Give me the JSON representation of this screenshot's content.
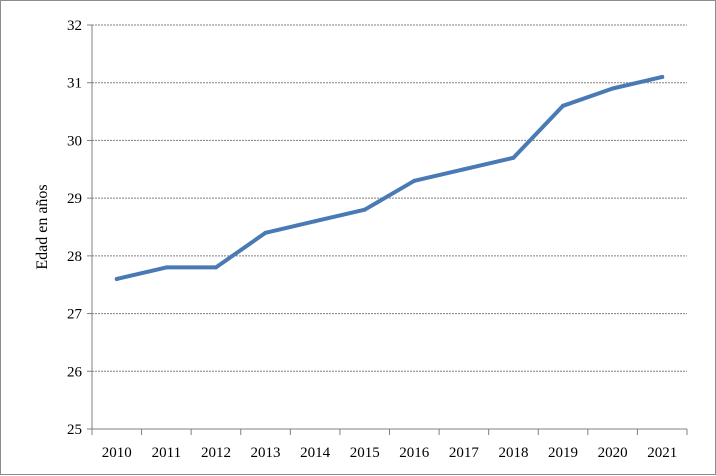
{
  "chart_data": {
    "type": "line",
    "title": "",
    "xlabel": "",
    "ylabel": "Edad en años",
    "x": [
      "2010",
      "2011",
      "2012",
      "2013",
      "2014",
      "2015",
      "2016",
      "2017",
      "2018",
      "2019",
      "2020",
      "2021"
    ],
    "series": [
      {
        "values": [
          27.6,
          27.8,
          27.8,
          28.4,
          28.6,
          28.8,
          29.3,
          29.5,
          29.7,
          30.6,
          30.9,
          31.1
        ],
        "color": "#4a7ab5"
      }
    ],
    "ylim": [
      25,
      32
    ],
    "yticks": [
      25,
      26,
      27,
      28,
      29,
      30,
      31,
      32
    ],
    "grid": true,
    "legend": "none"
  }
}
